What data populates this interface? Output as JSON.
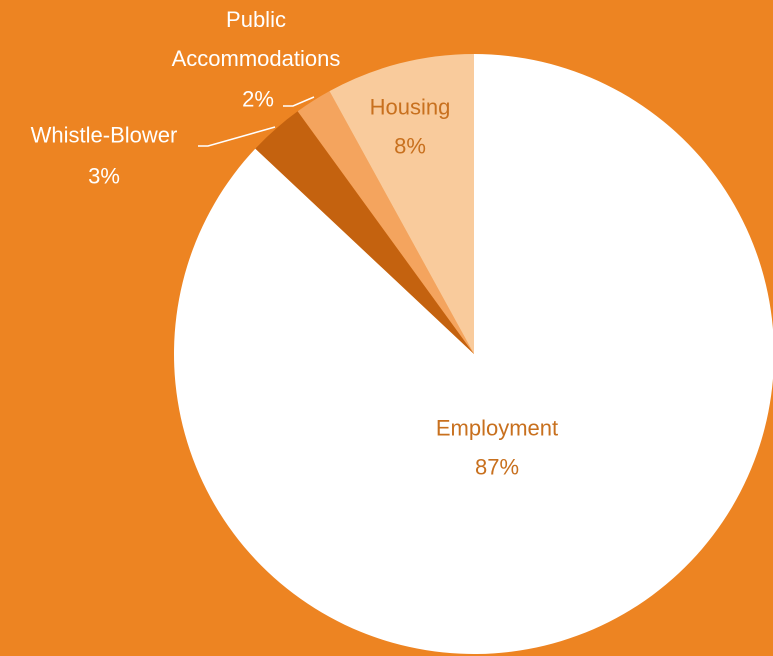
{
  "chart_data": {
    "type": "pie",
    "categories": [
      "Employment",
      "Whistle-Blower",
      "Public Accommodations",
      "Housing"
    ],
    "values": [
      87,
      3,
      2,
      8
    ],
    "value_labels": [
      "87%",
      "3%",
      "2%",
      "8%"
    ],
    "colors": [
      "#FFFFFF",
      "#C4620F",
      "#F4A45E",
      "#F9CB9C"
    ]
  }
}
